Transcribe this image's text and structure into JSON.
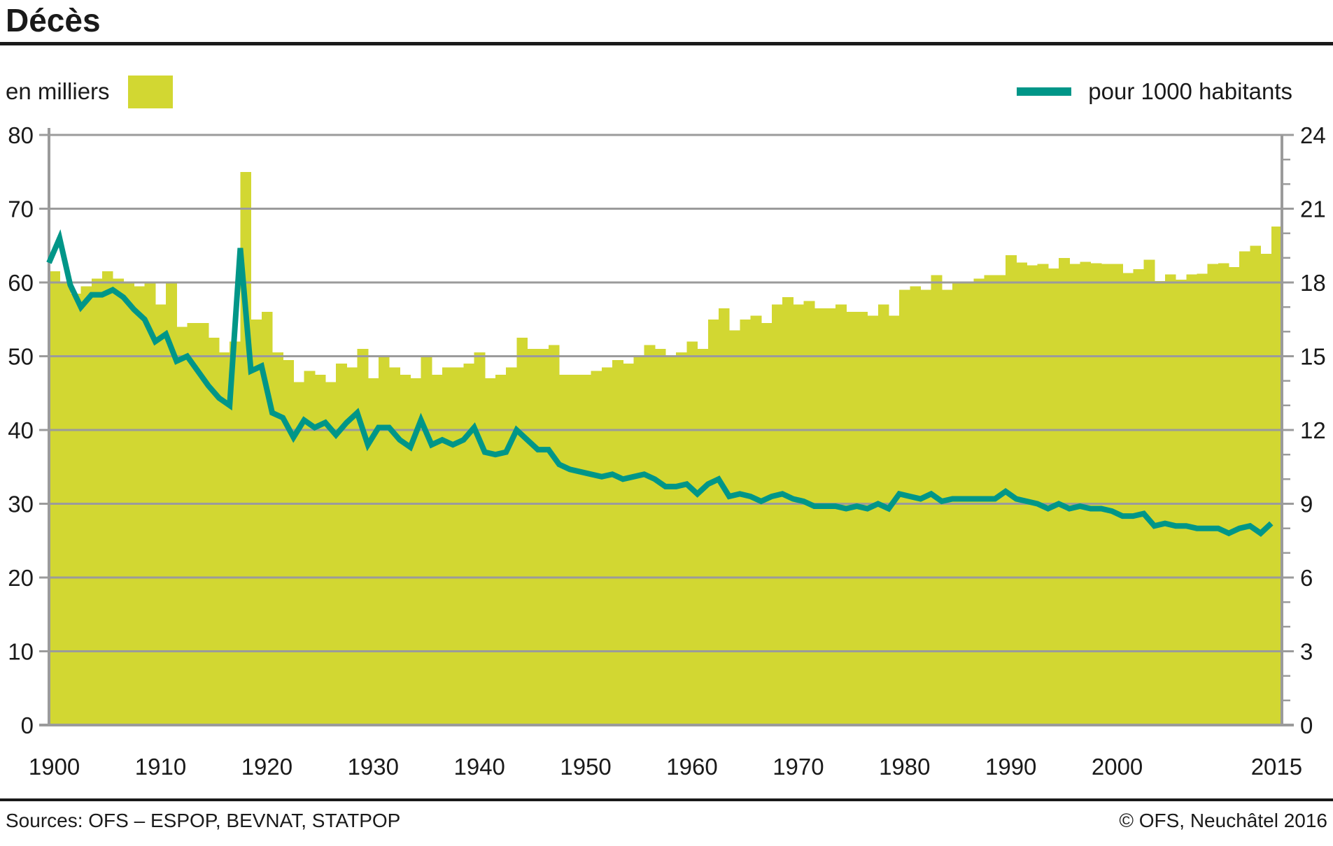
{
  "title": "Décès",
  "legend": {
    "bars_label": "en milliers",
    "line_label": "pour 1000 habitants"
  },
  "footer": {
    "sources": "Sources: OFS – ESPOP, BEVNAT, STATPOP",
    "copyright": "© OFS, Neuchâtel 2016"
  },
  "colors": {
    "bar": "#d2d732",
    "line": "#009688",
    "grid": "#9b9b9b",
    "axis": "#9b9b9b",
    "text": "#1a1a1a"
  },
  "chart_data": {
    "type": "bar",
    "note_type": "combined bar + line, dual axis",
    "title": "Décès",
    "xlabel": "",
    "ylabel_left": "en milliers",
    "ylabel_right": "pour 1000 habitants",
    "grid": true,
    "legend_position": "top",
    "x_ticks": [
      1900,
      1910,
      1920,
      1930,
      1940,
      1950,
      1960,
      1970,
      1980,
      1990,
      2000,
      2015
    ],
    "left_axis": {
      "range": [
        0,
        80
      ],
      "ticks": [
        80,
        70,
        60,
        50,
        40,
        30,
        20,
        10,
        0
      ]
    },
    "right_axis": {
      "range": [
        0,
        24
      ],
      "ticks": [
        24,
        21,
        18,
        15,
        12,
        9,
        6,
        3,
        0
      ],
      "minor_tick_step": 1
    },
    "years": [
      1900,
      1901,
      1902,
      1903,
      1904,
      1905,
      1906,
      1907,
      1908,
      1909,
      1910,
      1911,
      1912,
      1913,
      1914,
      1915,
      1916,
      1917,
      1918,
      1919,
      1920,
      1921,
      1922,
      1923,
      1924,
      1925,
      1926,
      1927,
      1928,
      1929,
      1930,
      1931,
      1932,
      1933,
      1934,
      1935,
      1936,
      1937,
      1938,
      1939,
      1940,
      1941,
      1942,
      1943,
      1944,
      1945,
      1946,
      1947,
      1948,
      1949,
      1950,
      1951,
      1952,
      1953,
      1954,
      1955,
      1956,
      1957,
      1958,
      1959,
      1960,
      1961,
      1962,
      1963,
      1964,
      1965,
      1966,
      1967,
      1968,
      1969,
      1970,
      1971,
      1972,
      1973,
      1974,
      1975,
      1976,
      1977,
      1978,
      1979,
      1980,
      1981,
      1982,
      1983,
      1984,
      1985,
      1986,
      1987,
      1988,
      1989,
      1990,
      1991,
      1992,
      1993,
      1994,
      1995,
      1996,
      1997,
      1998,
      1999,
      2000,
      2001,
      2002,
      2003,
      2004,
      2005,
      2006,
      2007,
      2008,
      2009,
      2010,
      2011,
      2012,
      2013,
      2014,
      2015
    ],
    "series": [
      {
        "name": "en milliers",
        "type": "bar",
        "axis": "left",
        "values": [
          61.5,
          60.0,
          58.5,
          59.5,
          60.5,
          61.5,
          60.5,
          60.0,
          59.5,
          60.0,
          57.0,
          60.0,
          54.0,
          54.5,
          54.5,
          52.5,
          50.5,
          52.0,
          75.0,
          55.0,
          56.0,
          50.5,
          49.5,
          46.5,
          48.0,
          47.5,
          46.5,
          49.0,
          48.5,
          51.0,
          47.0,
          50.0,
          48.5,
          47.5,
          47.0,
          50.0,
          47.5,
          48.5,
          48.5,
          49.0,
          50.5,
          47.0,
          47.5,
          48.5,
          52.5,
          51.0,
          51.0,
          51.5,
          47.5,
          47.5,
          47.5,
          48.0,
          48.5,
          49.5,
          49.0,
          50.0,
          51.5,
          51.0,
          50.0,
          50.5,
          52.0,
          51.0,
          55.0,
          56.5,
          53.5,
          55.0,
          55.5,
          54.5,
          57.0,
          58.0,
          57.0,
          57.5,
          56.5,
          56.5,
          57.0,
          56.0,
          56.0,
          55.5,
          57.0,
          55.5,
          59.0,
          59.5,
          59.0,
          61.0,
          59.0,
          60.0,
          60.0,
          60.5,
          61.0,
          61.0,
          63.7,
          62.7,
          62.3,
          62.5,
          61.9,
          63.3,
          62.5,
          62.8,
          62.6,
          62.5,
          62.5,
          61.3,
          61.8,
          63.1,
          60.2,
          61.1,
          60.4,
          61.1,
          61.2,
          62.5,
          62.6,
          62.1,
          64.2,
          65.0,
          63.9,
          67.6
        ]
      },
      {
        "name": "pour 1000 habitants",
        "type": "line",
        "axis": "right",
        "values": [
          18.8,
          19.8,
          17.9,
          17.0,
          17.5,
          17.5,
          17.7,
          17.4,
          16.9,
          16.5,
          15.6,
          15.9,
          14.8,
          15.0,
          14.4,
          13.8,
          13.3,
          13.0,
          19.4,
          14.4,
          14.6,
          12.7,
          12.5,
          11.7,
          12.4,
          12.1,
          12.3,
          11.8,
          12.3,
          12.7,
          11.4,
          12.1,
          12.1,
          11.6,
          11.3,
          12.4,
          11.4,
          11.6,
          11.4,
          11.6,
          12.1,
          11.1,
          11.0,
          11.1,
          12.0,
          11.6,
          11.2,
          11.2,
          10.6,
          10.4,
          10.3,
          10.2,
          10.1,
          10.2,
          10.0,
          10.1,
          10.2,
          10.0,
          9.7,
          9.7,
          9.8,
          9.4,
          9.8,
          10.0,
          9.3,
          9.4,
          9.3,
          9.1,
          9.3,
          9.4,
          9.2,
          9.1,
          8.9,
          8.9,
          8.9,
          8.8,
          8.9,
          8.8,
          9.0,
          8.8,
          9.4,
          9.3,
          9.2,
          9.4,
          9.1,
          9.2,
          9.2,
          9.2,
          9.2,
          9.2,
          9.5,
          9.2,
          9.1,
          9.0,
          8.8,
          9.0,
          8.8,
          8.9,
          8.8,
          8.8,
          8.7,
          8.5,
          8.5,
          8.6,
          8.1,
          8.2,
          8.1,
          8.1,
          8.0,
          8.0,
          8.0,
          7.8,
          8.0,
          8.1,
          7.8,
          8.2
        ]
      }
    ]
  }
}
